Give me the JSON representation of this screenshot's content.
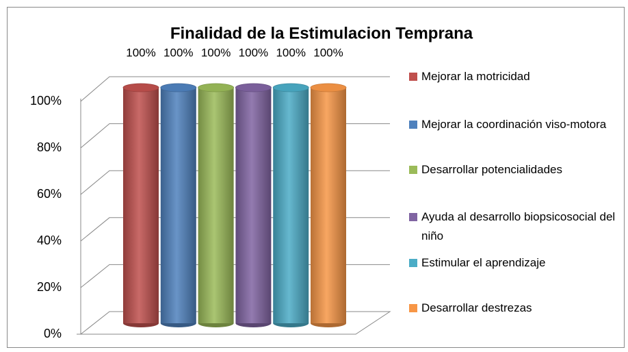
{
  "chart_data": {
    "type": "bar",
    "title": "Finalidad de la Estimulacion Temprana",
    "categories": [
      null
    ],
    "series": [
      {
        "name": "Mejorar la motricidad",
        "color": "#c0504d",
        "values": [
          100
        ],
        "value_labels": [
          "100%"
        ]
      },
      {
        "name": "Mejorar la coordinación viso-motora",
        "color": "#4f81bd",
        "values": [
          100
        ],
        "value_labels": [
          "100%"
        ]
      },
      {
        "name": "Desarrollar potencialidades",
        "color": "#9bbb59",
        "values": [
          100
        ],
        "value_labels": [
          "100%"
        ]
      },
      {
        "name": "Ayuda al desarrollo biopsicosocial del niño",
        "color": "#8064a2",
        "values": [
          100
        ],
        "value_labels": [
          "100%"
        ]
      },
      {
        "name": "Estimular el aprendizaje",
        "color": "#4bacc6",
        "values": [
          100
        ],
        "value_labels": [
          "100%"
        ]
      },
      {
        "name": "Desarrollar destrezas",
        "color": "#f79646",
        "values": [
          100
        ],
        "value_labels": [
          "100%"
        ]
      }
    ],
    "ylim": [
      0,
      100
    ],
    "yticks": [
      {
        "value": 0,
        "label": "0%"
      },
      {
        "value": 20,
        "label": "20%"
      },
      {
        "value": 40,
        "label": "40%"
      },
      {
        "value": 60,
        "label": "60%"
      },
      {
        "value": 80,
        "label": "80%"
      },
      {
        "value": 100,
        "label": "100%"
      }
    ],
    "grid": true,
    "legend": "right"
  }
}
